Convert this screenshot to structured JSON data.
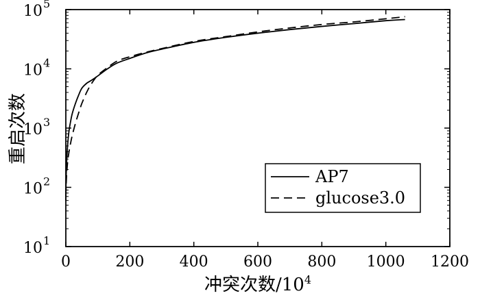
{
  "chart_data": {
    "type": "line",
    "title": "",
    "xlabel": "冲突次数/10",
    "xlabel_sup": "4",
    "ylabel": "重启次数",
    "xlim": [
      0,
      1200
    ],
    "ylim": [
      10,
      100000
    ],
    "yscale": "log",
    "grid": false,
    "legend_position": "lower-right",
    "x_ticks": [
      0,
      200,
      400,
      600,
      800,
      1000,
      1200
    ],
    "x_tick_labels": [
      "0",
      "200",
      "400",
      "600",
      "800",
      "1000",
      "1200"
    ],
    "y_ticks": [
      10,
      100,
      1000,
      10000,
      100000
    ],
    "y_tick_labels": [
      {
        "base": "10",
        "exp": "1"
      },
      {
        "base": "10",
        "exp": "2"
      },
      {
        "base": "10",
        "exp": "3"
      },
      {
        "base": "10",
        "exp": "4"
      },
      {
        "base": "10",
        "exp": "5"
      }
    ],
    "series": [
      {
        "name": "AP7",
        "style": "solid",
        "color": "#000000",
        "x": [
          0,
          1,
          3,
          6,
          10,
          15,
          20,
          30,
          40,
          50,
          65,
          80,
          100,
          130,
          160,
          200,
          250,
          300,
          400,
          500,
          600,
          700,
          800,
          900,
          1000,
          1060
        ],
        "y": [
          60,
          150,
          300,
          550,
          900,
          1300,
          1750,
          2600,
          3600,
          4700,
          5700,
          6400,
          7600,
          10000,
          12500,
          15000,
          18500,
          21500,
          28000,
          34000,
          40000,
          46000,
          52000,
          58000,
          65000,
          68000
        ]
      },
      {
        "name": "glucose3.0",
        "style": "dashed",
        "color": "#000000",
        "x": [
          0,
          1,
          3,
          6,
          10,
          15,
          20,
          30,
          40,
          50,
          65,
          80,
          100,
          130,
          160,
          200,
          250,
          300,
          400,
          500,
          600,
          700,
          800,
          900,
          1000,
          1060
        ],
        "y": [
          70,
          110,
          180,
          280,
          400,
          560,
          750,
          1200,
          1800,
          2600,
          4000,
          5600,
          7800,
          10500,
          13500,
          16000,
          19000,
          22000,
          29000,
          35000,
          42000,
          49000,
          56000,
          62000,
          70000,
          76000
        ]
      }
    ]
  }
}
